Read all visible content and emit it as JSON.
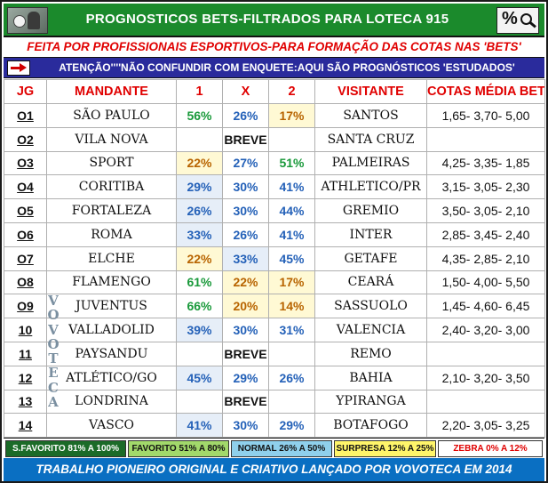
{
  "header": {
    "title": "PROGNOSTICOS BETS-FILTRADOS PARA LOTECA 915",
    "right_icon_text": "%"
  },
  "subtitle": "FEITA POR PROFISSIONAIS ESPORTIVOS-PARA FORMAÇÃO DAS COTAS NAS 'BETS'",
  "attention": "ATENÇÃO''''NÃO CONFUNDIR COM ENQUETE:AQUI SÃO PROGNÓSTICOS 'ESTUDADOS'",
  "columns": {
    "jg": "JG",
    "home": "MANDANTE",
    "one": "1",
    "x": "X",
    "two": "2",
    "away": "VISITANTE",
    "odds": "COTAS MÉDIA BETS"
  },
  "rows": [
    {
      "jg": "O1",
      "home": "SÃO PAULO",
      "p1": "56%",
      "px": "26%",
      "p2": "17%",
      "away": "SANTOS",
      "odds": "1,65- 3,70- 5,00"
    },
    {
      "jg": "O2",
      "home": "VILA NOVA",
      "p1": "",
      "px": "BREVE",
      "p2": "",
      "away": "SANTA CRUZ",
      "odds": ""
    },
    {
      "jg": "O3",
      "home": "SPORT",
      "p1": "22%",
      "px": "27%",
      "p2": "51%",
      "away": "PALMEIRAS",
      "odds": "4,25- 3,35- 1,85"
    },
    {
      "jg": "O4",
      "home": "CORITIBA",
      "p1": "29%",
      "px": "30%",
      "p2": "41%",
      "away": "ATHLETICO/PR",
      "odds": "3,15- 3,05- 2,30"
    },
    {
      "jg": "O5",
      "home": "FORTALEZA",
      "p1": "26%",
      "px": "30%",
      "p2": "44%",
      "away": "GREMIO",
      "odds": "3,50- 3,05- 2,10"
    },
    {
      "jg": "O6",
      "home": "ROMA",
      "p1": "33%",
      "px": "26%",
      "p2": "41%",
      "away": "INTER",
      "odds": "2,85- 3,45- 2,40"
    },
    {
      "jg": "O7",
      "home": "ELCHE",
      "p1": "22%",
      "px": "33%",
      "p2": "45%",
      "away": "GETAFE",
      "odds": "4,35- 2,85- 2,10"
    },
    {
      "jg": "O8",
      "home": "FLAMENGO",
      "p1": "61%",
      "px": "22%",
      "p2": "17%",
      "away": "CEARÁ",
      "odds": "1,50- 4,00- 5,50"
    },
    {
      "jg": "O9",
      "home": "JUVENTUS",
      "p1": "66%",
      "px": "20%",
      "p2": "14%",
      "away": "SASSUOLO",
      "odds": "1,45- 4,60- 6,45"
    },
    {
      "jg": "10",
      "home": "VALLADOLID",
      "p1": "39%",
      "px": "30%",
      "p2": "31%",
      "away": "VALENCIA",
      "odds": "2,40- 3,20- 3,00"
    },
    {
      "jg": "11",
      "home": "PAYSANDU",
      "p1": "",
      "px": "BREVE",
      "p2": "",
      "away": "REMO",
      "odds": ""
    },
    {
      "jg": "12",
      "home": "ATLÉTICO/GO",
      "p1": "45%",
      "px": "29%",
      "p2": "26%",
      "away": "BAHIA",
      "odds": "2,10- 3,20- 3,50"
    },
    {
      "jg": "13",
      "home": "LONDRINA",
      "p1": "",
      "px": "BREVE",
      "p2": "",
      "away": "YPIRANGA",
      "odds": ""
    },
    {
      "jg": "14",
      "home": "VASCO",
      "p1": "41%",
      "px": "30%",
      "p2": "29%",
      "away": "BOTAFOGO",
      "odds": "2,20- 3,05- 3,25"
    }
  ],
  "vertical_text": [
    "V",
    "O",
    "V",
    "O",
    "T",
    "E",
    "C",
    "A"
  ],
  "legend": {
    "favorite_strong": "S.FAVORITO 81% A 100%",
    "favorite": "FAVORITO 51% A 80%",
    "normal": "NORMAL 26% A 50%",
    "surprise": "SURPRESA 12% A 25%",
    "zebra": "ZEBRA    0% A 12%"
  },
  "footer": "TRABALHO PIONEIRO ORIGINAL E CRIATIVO LANÇADO POR VOVOTECA EM 2014",
  "colors": {
    "header_green": "#1b8a2c",
    "attention_blue": "#2a2b9c",
    "footer_blue": "#0a6fc2",
    "pct_blue": "#2461b8",
    "pct_green": "#19993a",
    "pct_orange": "#b86400",
    "label_red": "#e00000"
  }
}
